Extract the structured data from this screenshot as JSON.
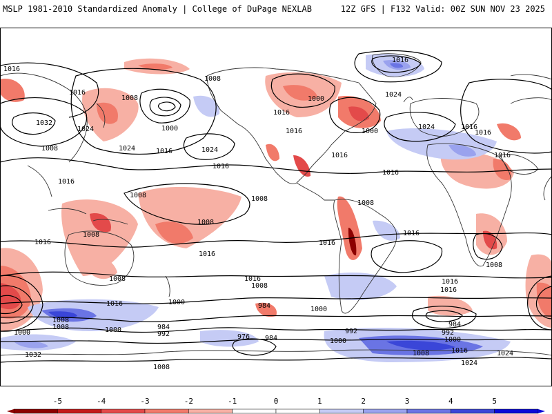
{
  "header": {
    "title": "MSLP 1981-2010 Standardized Anomaly | College of DuPage NEXLAB",
    "run_info": "12Z GFS | F132 Valid: 00Z SUN NOV 23 2025"
  },
  "map": {
    "contour_labels": [
      "1016",
      "1016",
      "1008",
      "1032",
      "1024",
      "1024",
      "1008",
      "1016",
      "1024",
      "1000",
      "1008",
      "1000",
      "1016",
      "1016",
      "1016",
      "1000",
      "1016",
      "1024",
      "1016",
      "1016",
      "1024",
      "1016",
      "1016",
      "1008",
      "1016",
      "1016",
      "1016",
      "1008",
      "1008",
      "1008",
      "1016",
      "1008",
      "1016",
      "1008",
      "1008",
      "1016",
      "1016",
      "1016",
      "1008",
      "1000",
      "1000",
      "984",
      "984",
      "976",
      "984",
      "992",
      "992",
      "1008",
      "1000",
      "1008",
      "1032",
      "1000",
      "1000",
      "1016",
      "1016",
      "1024",
      "1024",
      "1008",
      "1016",
      "984",
      "992",
      "1000",
      "1008"
    ],
    "colors": {
      "negative": "#e34a4a",
      "positive": "#5a66e0",
      "contour": "#000000",
      "coast": "#333333"
    }
  },
  "colorbar": {
    "ticks": [
      "-5",
      "-4",
      "-3",
      "-2",
      "-1",
      "0",
      "1",
      "2",
      "3",
      "4",
      "5"
    ],
    "colors": [
      "#8c0000",
      "#c41a1a",
      "#e34a4a",
      "#f17a6a",
      "#f7b0a4",
      "#ffffff",
      "#ffffff",
      "#c5cbf5",
      "#9aa2ee",
      "#6a74e4",
      "#3a46d8",
      "#0a0ad8"
    ]
  }
}
